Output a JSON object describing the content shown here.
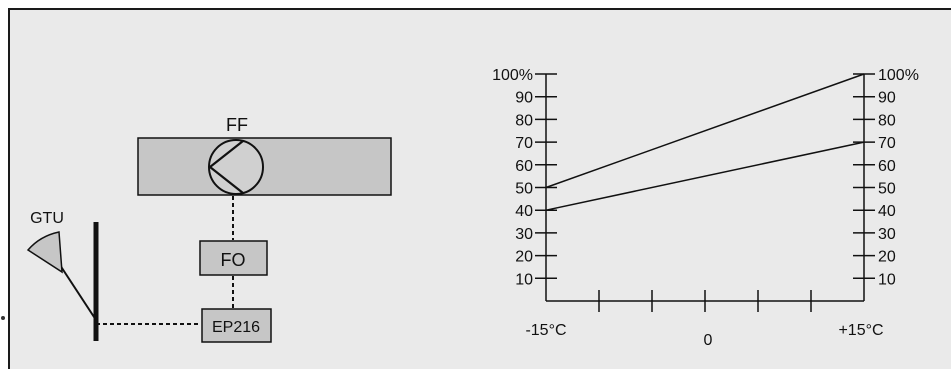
{
  "schematic": {
    "fan_label": "FF",
    "sensor_label": "GTU",
    "controller_label": "FO",
    "module_label": "EP216"
  },
  "colors": {
    "panel_bg": "#eaeaea",
    "box_fill": "#c6c6c6",
    "line": "#111111"
  },
  "chart_data": {
    "type": "line",
    "x_tick_labels": [
      "-15°C",
      "0",
      "+15°C"
    ],
    "y_tick_labels_left": [
      "100%",
      "90",
      "80",
      "70",
      "60",
      "50",
      "40",
      "30",
      "20",
      "10"
    ],
    "y_tick_labels_right": [
      "100%",
      "90",
      "80",
      "70",
      "60",
      "50",
      "40",
      "30",
      "20",
      "10"
    ],
    "xlim": [
      -15,
      15
    ],
    "ylim": [
      0,
      100
    ],
    "series": [
      {
        "x": [
          -15,
          15
        ],
        "y": [
          50,
          100
        ]
      },
      {
        "x": [
          -15,
          15
        ],
        "y": [
          40,
          70
        ]
      }
    ]
  }
}
